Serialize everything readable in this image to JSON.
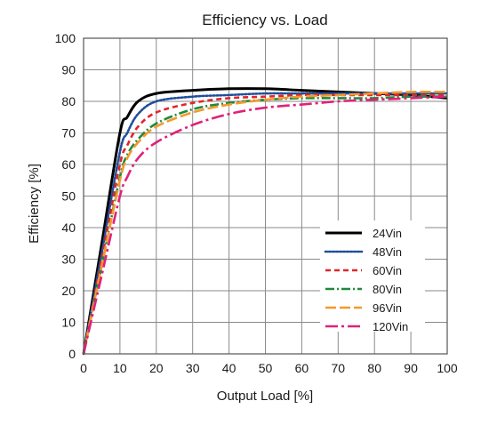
{
  "chart_data": {
    "type": "line",
    "title": "Efficiency vs. Load",
    "xlabel": "Output Load [%]",
    "ylabel": "Efficiency [%]",
    "xlim": [
      0,
      100
    ],
    "ylim": [
      0,
      100
    ],
    "x_ticks": [
      "0",
      "10",
      "20",
      "30",
      "40",
      "50",
      "60",
      "70",
      "80",
      "90",
      "100"
    ],
    "y_ticks": [
      "0",
      "10",
      "20",
      "30",
      "40",
      "50",
      "60",
      "70",
      "80",
      "90",
      "100"
    ],
    "grid": true,
    "legend_position": "bottom-right",
    "series": [
      {
        "name": "24Vin",
        "color": "#000000",
        "dash": "solid",
        "points": [
          [
            0,
            0
          ],
          [
            5,
            35
          ],
          [
            10,
            70
          ],
          [
            12,
            75
          ],
          [
            15,
            80
          ],
          [
            20,
            82.5
          ],
          [
            30,
            83.5
          ],
          [
            40,
            84
          ],
          [
            50,
            84
          ],
          [
            60,
            83.5
          ],
          [
            70,
            83
          ],
          [
            80,
            82.5
          ],
          [
            90,
            82
          ],
          [
            100,
            81
          ]
        ]
      },
      {
        "name": "48Vin",
        "color": "#1f4e9c",
        "dash": "dotted",
        "points": [
          [
            0,
            0
          ],
          [
            5,
            32
          ],
          [
            10,
            64
          ],
          [
            12,
            70
          ],
          [
            15,
            76
          ],
          [
            20,
            80
          ],
          [
            30,
            81.5
          ],
          [
            40,
            82
          ],
          [
            50,
            82.5
          ],
          [
            60,
            82.5
          ],
          [
            70,
            82.5
          ],
          [
            80,
            82.5
          ],
          [
            90,
            82.5
          ],
          [
            100,
            82.5
          ]
        ]
      },
      {
        "name": "60Vin",
        "color": "#e0262a",
        "dash": "dashed",
        "points": [
          [
            0,
            0
          ],
          [
            5,
            30
          ],
          [
            10,
            60
          ],
          [
            12,
            66
          ],
          [
            15,
            72
          ],
          [
            20,
            76.5
          ],
          [
            30,
            79.5
          ],
          [
            40,
            81
          ],
          [
            50,
            81.5
          ],
          [
            60,
            82
          ],
          [
            70,
            82
          ],
          [
            80,
            82
          ],
          [
            90,
            82
          ],
          [
            100,
            82
          ]
        ]
      },
      {
        "name": "80Vin",
        "color": "#1e8a3a",
        "dash": "dashdot",
        "points": [
          [
            0,
            0
          ],
          [
            5,
            28
          ],
          [
            10,
            56
          ],
          [
            12,
            63
          ],
          [
            15,
            68
          ],
          [
            20,
            73
          ],
          [
            30,
            77.5
          ],
          [
            40,
            79.5
          ],
          [
            50,
            80.5
          ],
          [
            60,
            81
          ],
          [
            70,
            81
          ],
          [
            80,
            81
          ],
          [
            90,
            81.5
          ],
          [
            100,
            81.5
          ]
        ]
      },
      {
        "name": "96Vin",
        "color": "#f29a2e",
        "dash": "longdash",
        "points": [
          [
            0,
            0
          ],
          [
            5,
            28
          ],
          [
            10,
            55
          ],
          [
            12,
            62
          ],
          [
            15,
            67
          ],
          [
            20,
            72
          ],
          [
            30,
            76.5
          ],
          [
            40,
            79
          ],
          [
            50,
            80.5
          ],
          [
            60,
            81.5
          ],
          [
            70,
            82
          ],
          [
            80,
            82.5
          ],
          [
            90,
            83
          ],
          [
            100,
            83
          ]
        ]
      },
      {
        "name": "120Vin",
        "color": "#e0217a",
        "dash": "longdashdot",
        "points": [
          [
            0,
            0
          ],
          [
            5,
            25
          ],
          [
            10,
            50
          ],
          [
            12,
            56
          ],
          [
            15,
            62
          ],
          [
            20,
            67
          ],
          [
            30,
            72.5
          ],
          [
            40,
            76
          ],
          [
            50,
            78
          ],
          [
            60,
            79
          ],
          [
            70,
            80
          ],
          [
            80,
            80.5
          ],
          [
            90,
            81
          ],
          [
            100,
            81.5
          ]
        ]
      }
    ]
  }
}
